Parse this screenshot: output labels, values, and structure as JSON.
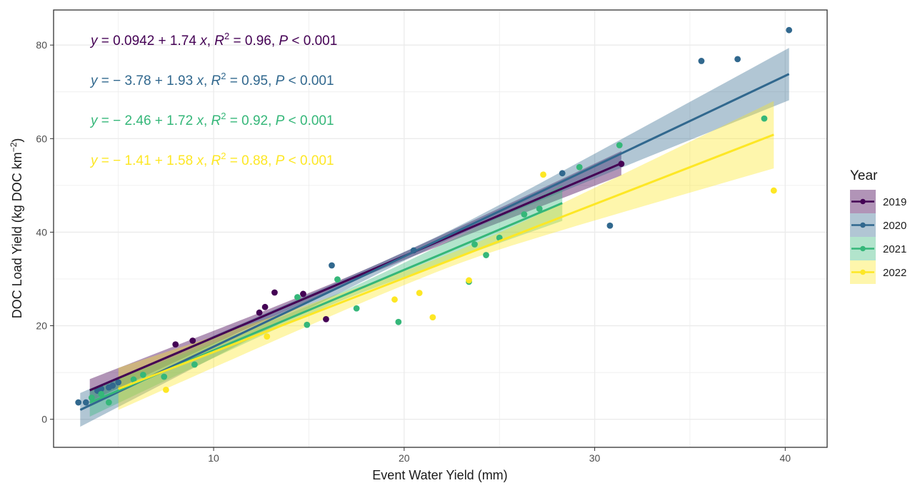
{
  "chart_data": {
    "type": "scatter",
    "title": "",
    "xlabel": "Event Water Yield (mm)",
    "ylabel_text": "DOC Load Yield (kg DOC km",
    "ylabel_sup": "−2",
    "ylabel_close": ")",
    "xlim": [
      1.6,
      42.2
    ],
    "ylim": [
      -6.0,
      87.5
    ],
    "xticks": [
      10,
      20,
      30,
      40
    ],
    "yticks": [
      0,
      20,
      40,
      60,
      80
    ],
    "grid": true,
    "legend": {
      "title": "Year",
      "placement": "right"
    },
    "series": [
      {
        "name": "2019",
        "color": "#440154",
        "fit": {
          "intercept": 0.0942,
          "slope": 1.74,
          "x_range": [
            3.5,
            31.4
          ],
          "ci_half_width": [
            2.4,
            2.6
          ],
          "ci_mid_min": 0.7
        },
        "equation": {
          "a": "0.0942",
          "op": "+",
          "b": "1.74",
          "r2": "0.96",
          "p": "0.001"
        },
        "points": [
          [
            8.0,
            16.0
          ],
          [
            8.9,
            16.8
          ],
          [
            12.4,
            22.8
          ],
          [
            12.7,
            24.0
          ],
          [
            13.2,
            27.1
          ],
          [
            14.7,
            26.8
          ],
          [
            15.9,
            21.4
          ],
          [
            31.4,
            54.6
          ]
        ]
      },
      {
        "name": "2020",
        "color": "#31688E",
        "fit": {
          "intercept": -3.78,
          "slope": 1.93,
          "x_range": [
            3.0,
            40.2
          ],
          "ci_half_width": [
            3.6,
            5.6
          ],
          "ci_mid_min": 0.9
        },
        "equation": {
          "a": "3.78",
          "op": "+",
          "b": "1.93",
          "r2": "0.95",
          "p": "0.001"
        },
        "points": [
          [
            2.9,
            3.6
          ],
          [
            3.3,
            3.6
          ],
          [
            3.9,
            6.1
          ],
          [
            4.1,
            6.5
          ],
          [
            4.5,
            6.8
          ],
          [
            4.7,
            7.2
          ],
          [
            5.0,
            7.9
          ],
          [
            16.2,
            32.9
          ],
          [
            20.5,
            36.1
          ],
          [
            28.3,
            52.6
          ],
          [
            30.8,
            41.4
          ],
          [
            35.6,
            76.6
          ],
          [
            37.5,
            77.0
          ],
          [
            40.2,
            83.2
          ]
        ]
      },
      {
        "name": "2021",
        "color": "#35B779",
        "fit": {
          "intercept": -2.46,
          "slope": 1.72,
          "x_range": [
            3.5,
            28.3
          ],
          "ci_half_width": [
            3.0,
            3.8
          ],
          "ci_mid_min": 0.9
        },
        "equation": {
          "a": "2.46",
          "op": "+",
          "b": "1.72",
          "r2": "0.92",
          "p": "0.001"
        },
        "points": [
          [
            3.6,
            4.6
          ],
          [
            4.1,
            5.4
          ],
          [
            4.5,
            3.6
          ],
          [
            5.8,
            8.5
          ],
          [
            6.3,
            9.5
          ],
          [
            7.4,
            9.1
          ],
          [
            9.0,
            11.7
          ],
          [
            14.4,
            26.1
          ],
          [
            14.9,
            20.2
          ],
          [
            16.5,
            29.9
          ],
          [
            17.5,
            23.7
          ],
          [
            19.7,
            20.8
          ],
          [
            23.4,
            29.4
          ],
          [
            23.7,
            37.4
          ],
          [
            24.3,
            35.1
          ],
          [
            25.0,
            38.8
          ],
          [
            26.3,
            43.8
          ],
          [
            27.1,
            45.0
          ],
          [
            29.2,
            53.9
          ],
          [
            31.3,
            58.6
          ],
          [
            38.9,
            64.3
          ]
        ]
      },
      {
        "name": "2022",
        "color": "#FDE725",
        "fit": {
          "intercept": -1.41,
          "slope": 1.58,
          "x_range": [
            5.0,
            39.4
          ],
          "ci_half_width": [
            4.5,
            7.2
          ],
          "ci_mid_min": 1.4
        },
        "equation": {
          "a": "1.41",
          "op": "+",
          "b": "1.58",
          "r2": "0.88",
          "p": "0.001"
        },
        "points": [
          [
            7.5,
            6.3
          ],
          [
            12.8,
            17.7
          ],
          [
            19.5,
            25.6
          ],
          [
            20.8,
            27.0
          ],
          [
            21.5,
            21.8
          ],
          [
            23.4,
            29.7
          ],
          [
            27.3,
            52.3
          ],
          [
            39.4,
            48.9
          ]
        ]
      }
    ]
  }
}
